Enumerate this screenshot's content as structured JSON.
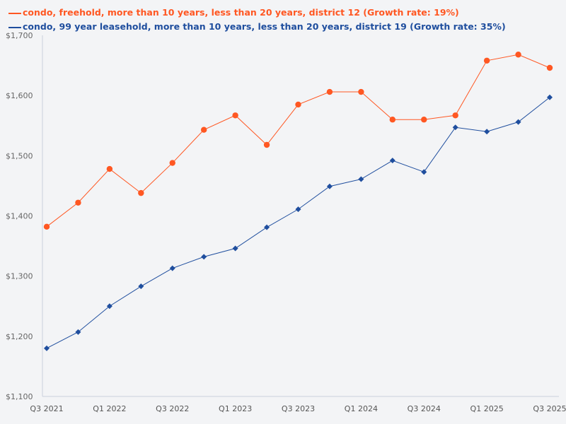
{
  "chart_data": {
    "type": "line",
    "title": "",
    "xlabel": "",
    "ylabel": "",
    "ylim": [
      1100,
      1700
    ],
    "yticks": [
      1100,
      1200,
      1300,
      1400,
      1500,
      1600,
      1700
    ],
    "ytick_labels": [
      "$1,100",
      "$1,200",
      "$1,300",
      "$1,400",
      "$1,500",
      "$1,600",
      "$1,700"
    ],
    "x": [
      "Q3 2021",
      "Q4 2021",
      "Q1 2022",
      "Q2 2022",
      "Q3 2022",
      "Q4 2022",
      "Q1 2023",
      "Q2 2023",
      "Q3 2023",
      "Q4 2023",
      "Q1 2024",
      "Q2 2024",
      "Q3 2024",
      "Q4 2024",
      "Q1 2025",
      "Q2 2025",
      "Q3 2025"
    ],
    "xtick_labels": [
      "Q3 2021",
      "Q1 2022",
      "Q3 2022",
      "Q1 2023",
      "Q3 2023",
      "Q1 2024",
      "Q3 2024",
      "Q1 2025",
      "Q3 2025"
    ],
    "grid": false,
    "legend_placement": "top-left",
    "series": [
      {
        "name": "condo, freehold, more than 10 years, less than 20 years, district 12 (Growth rate: 19%)",
        "color": "#ff5722",
        "marker": "circle",
        "values": [
          1382,
          1422,
          1478,
          1438,
          1488,
          1543,
          1567,
          1518,
          1585,
          1606,
          1606,
          1560,
          1560,
          1567,
          1658,
          1668,
          1646
        ]
      },
      {
        "name": "condo, 99 year leasehold, more than 10 years, less than 20 years, district 19 (Growth rate: 35%)",
        "color": "#1f4e9e",
        "marker": "diamond",
        "values": [
          1180,
          1207,
          1250,
          1283,
          1313,
          1332,
          1346,
          1381,
          1411,
          1449,
          1461,
          1492,
          1473,
          1547,
          1540,
          1556,
          1597
        ]
      }
    ]
  }
}
